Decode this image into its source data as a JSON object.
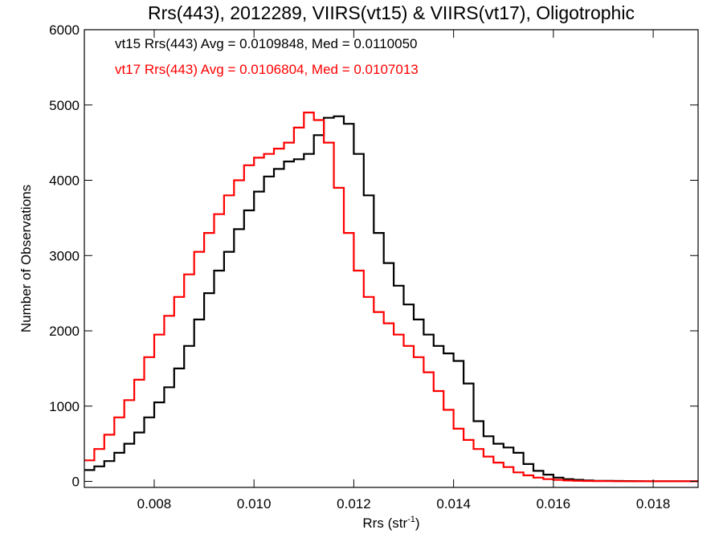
{
  "chart_data": {
    "type": "line",
    "title": "Rrs(443), 2012289, VIIRS(vt15) & VIIRS(vt17), Oligotrophic",
    "xlabel": "Rrs (str",
    "xlabel_sup": "-1",
    "xlabel_close": ")",
    "ylabel": "Number of Observations",
    "xlim": [
      0.0066,
      0.0189
    ],
    "ylim": [
      -80,
      6000
    ],
    "xticks": [
      {
        "value": 0.008,
        "label": "0.008"
      },
      {
        "value": 0.01,
        "label": "0.010"
      },
      {
        "value": 0.012,
        "label": "0.012"
      },
      {
        "value": 0.014,
        "label": "0.014"
      },
      {
        "value": 0.016,
        "label": "0.016"
      },
      {
        "value": 0.018,
        "label": "0.018"
      }
    ],
    "yticks": [
      {
        "value": 0,
        "label": "0"
      },
      {
        "value": 1000,
        "label": "1000"
      },
      {
        "value": 2000,
        "label": "2000"
      },
      {
        "value": 3000,
        "label": "3000"
      },
      {
        "value": 4000,
        "label": "4000"
      },
      {
        "value": 5000,
        "label": "5000"
      },
      {
        "value": 6000,
        "label": "6000"
      }
    ],
    "grid": false,
    "legend_position": "top-left",
    "series": [
      {
        "key": "vt15",
        "name": "vt15 Rrs(443) Avg = 0.0109848, Med = 0.0110050",
        "color": "#000000",
        "x": [
          0.0066,
          0.0068,
          0.007,
          0.0072,
          0.0074,
          0.0076,
          0.0078,
          0.008,
          0.0082,
          0.0084,
          0.0086,
          0.0088,
          0.009,
          0.0092,
          0.0094,
          0.0096,
          0.0098,
          0.01,
          0.0102,
          0.0104,
          0.0106,
          0.0108,
          0.011,
          0.0112,
          0.0114,
          0.0116,
          0.0118,
          0.012,
          0.0122,
          0.0124,
          0.0126,
          0.0128,
          0.013,
          0.0132,
          0.0134,
          0.0136,
          0.0138,
          0.014,
          0.0142,
          0.0144,
          0.0146,
          0.0148,
          0.015,
          0.0152,
          0.0154,
          0.0156,
          0.0158,
          0.016,
          0.0162,
          0.0164,
          0.0166,
          0.0168,
          0.017,
          0.0172,
          0.0174,
          0.0176,
          0.0178,
          0.018,
          0.0182,
          0.0184,
          0.0186,
          0.0188,
          0.0189
        ],
        "y": [
          150,
          200,
          270,
          380,
          500,
          650,
          850,
          1050,
          1250,
          1500,
          1800,
          2150,
          2500,
          2800,
          3050,
          3350,
          3600,
          3850,
          4050,
          4150,
          4250,
          4280,
          4350,
          4600,
          4830,
          4850,
          4750,
          4350,
          3800,
          3300,
          2900,
          2600,
          2350,
          2150,
          1950,
          1800,
          1700,
          1600,
          1300,
          800,
          600,
          500,
          450,
          380,
          230,
          140,
          90,
          50,
          30,
          20,
          12,
          8,
          6,
          5,
          4,
          3,
          2,
          2,
          1,
          1,
          1,
          1,
          1
        ]
      },
      {
        "key": "vt17",
        "name": "vt17 Rrs(443) Avg = 0.0106804, Med = 0.0107013",
        "color": "#ff0000",
        "x": [
          0.0066,
          0.0068,
          0.007,
          0.0072,
          0.0074,
          0.0076,
          0.0078,
          0.008,
          0.0082,
          0.0084,
          0.0086,
          0.0088,
          0.009,
          0.0092,
          0.0094,
          0.0096,
          0.0098,
          0.01,
          0.0102,
          0.0104,
          0.0106,
          0.0108,
          0.011,
          0.0112,
          0.0114,
          0.0116,
          0.0118,
          0.012,
          0.0122,
          0.0124,
          0.0126,
          0.0128,
          0.013,
          0.0132,
          0.0134,
          0.0136,
          0.0138,
          0.014,
          0.0142,
          0.0144,
          0.0146,
          0.0148,
          0.015,
          0.0152,
          0.0154,
          0.0156,
          0.0158,
          0.016,
          0.0162,
          0.0164,
          0.0166,
          0.0168,
          0.017,
          0.0172,
          0.0174,
          0.0176,
          0.0178,
          0.018,
          0.0182,
          0.0184,
          0.0186,
          0.0188,
          0.0189
        ],
        "y": [
          280,
          430,
          620,
          850,
          1080,
          1350,
          1650,
          1950,
          2200,
          2450,
          2750,
          3050,
          3300,
          3550,
          3800,
          4000,
          4200,
          4300,
          4350,
          4420,
          4500,
          4700,
          4900,
          4800,
          4500,
          3900,
          3300,
          2800,
          2450,
          2250,
          2100,
          1950,
          1800,
          1650,
          1450,
          1200,
          950,
          700,
          550,
          430,
          330,
          250,
          190,
          120,
          80,
          50,
          30,
          20,
          12,
          8,
          5,
          4,
          3,
          2,
          2,
          1,
          1,
          1,
          1,
          1,
          1,
          1,
          1
        ]
      }
    ]
  }
}
